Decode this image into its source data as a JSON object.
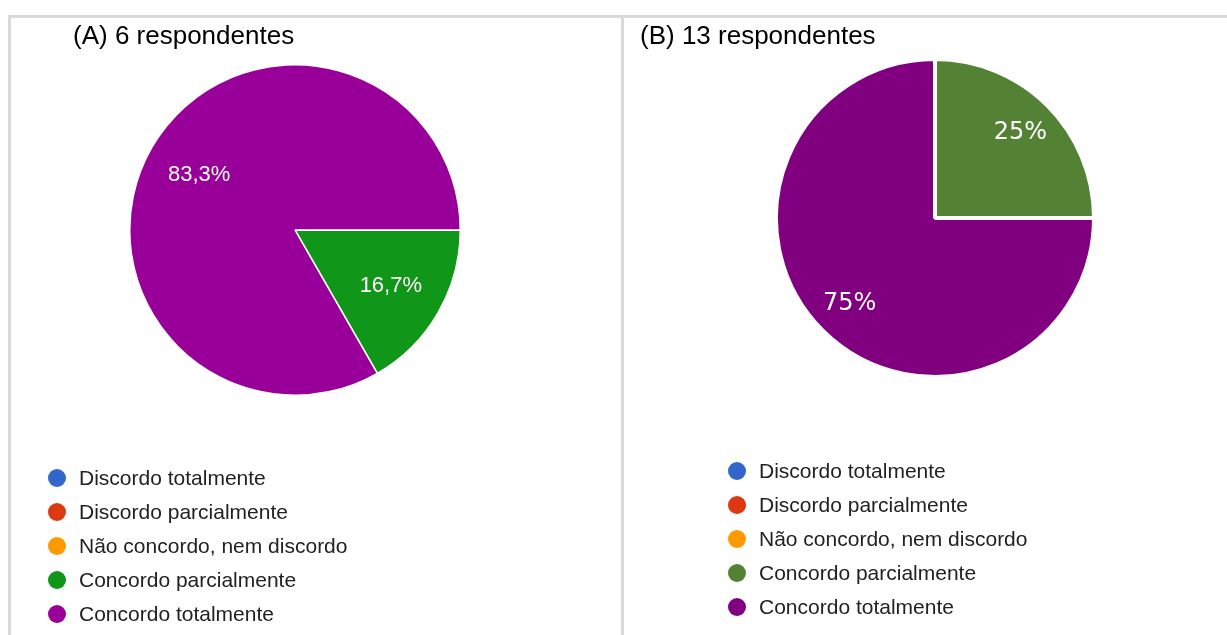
{
  "chart_data": [
    {
      "type": "pie",
      "title": "(A) 6 respondentes",
      "categories": [
        "Discordo totalmente",
        "Discordo parcialmente",
        "Não concordo, nem discordo",
        "Concordo parcialmente",
        "Concordo totalmente"
      ],
      "values": [
        0,
        0,
        0,
        16.7,
        83.3
      ],
      "colors": [
        "#3366cc",
        "#dc3912",
        "#ff9900",
        "#109618",
        "#990099"
      ],
      "value_labels": [
        null,
        null,
        null,
        "16,7%",
        "83,3%"
      ],
      "legend": "bottom"
    },
    {
      "type": "pie",
      "title": "(B) 13 respondentes",
      "categories": [
        "Discordo totalmente",
        "Discordo parcialmente",
        "Não concordo, nem discordo",
        "Concordo parcialmente",
        "Concordo totalmente"
      ],
      "values": [
        0,
        0,
        0,
        25,
        75
      ],
      "colors": [
        "#3366cc",
        "#dc3912",
        "#ff9900",
        "#548235",
        "#800080"
      ],
      "value_labels": [
        null,
        null,
        null,
        "25%",
        "75%"
      ],
      "legend": "bottom"
    }
  ]
}
